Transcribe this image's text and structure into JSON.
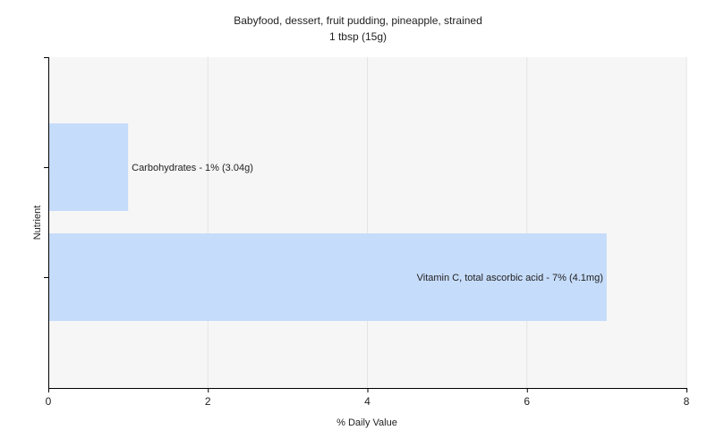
{
  "chart_data": {
    "type": "bar",
    "orientation": "horizontal",
    "title": "Babyfood, dessert, fruit pudding, pineapple, strained",
    "subtitle": "1 tbsp (15g)",
    "xlabel": "% Daily Value",
    "ylabel": "Nutrient",
    "xlim": [
      0,
      8
    ],
    "xticks": [
      0,
      2,
      4,
      6,
      8
    ],
    "grid": true,
    "categories": [
      "Carbohydrates",
      "Vitamin C, total ascorbic acid"
    ],
    "values": [
      1,
      7
    ],
    "labels": [
      "Carbohydrates - 1% (3.04g)",
      "Vitamin C, total ascorbic acid - 7% (4.1mg)"
    ],
    "colors": {
      "bar": "#c6dcfb",
      "plot_background": "#f6f6f6",
      "grid": "#e4e4e4",
      "axis": "#000000"
    }
  }
}
